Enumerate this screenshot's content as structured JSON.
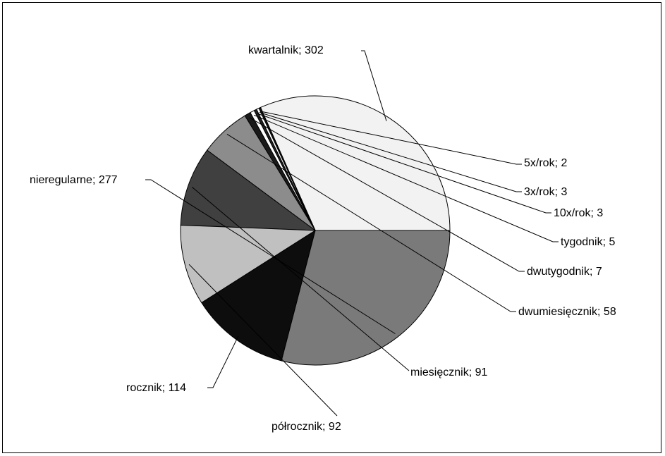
{
  "chart_data": {
    "type": "pie",
    "title": "",
    "legend": "none",
    "slices": [
      {
        "label": "kwartalnik; 302",
        "category": "kwartalnik",
        "value": 302,
        "color": "#f2f2f2"
      },
      {
        "label": "5x/rok; 2",
        "category": "5x/rok",
        "value": 2,
        "color": "#111111"
      },
      {
        "label": "3x/rok; 3",
        "category": "3x/rok",
        "value": 3,
        "color": "#ffffff"
      },
      {
        "label": "10x/rok; 3",
        "category": "10x/rok",
        "value": 3,
        "color": "#222222"
      },
      {
        "label": "tygodnik; 5",
        "category": "tygodnik",
        "value": 5,
        "color": "#ffffff"
      },
      {
        "label": "dwutygodnik; 7",
        "category": "dwutygodnik",
        "value": 7,
        "color": "#1a1a1a"
      },
      {
        "label": "dwumiesięcznik; 58",
        "category": "dwumiesięcznik",
        "value": 58,
        "color": "#8c8c8c"
      },
      {
        "label": "miesięcznik; 91",
        "category": "miesięcznik",
        "value": 91,
        "color": "#404040"
      },
      {
        "label": "półrocznik; 92",
        "category": "półrocznik",
        "value": 92,
        "color": "#c0c0c0"
      },
      {
        "label": "rocznik; 114",
        "category": "rocznik",
        "value": 114,
        "color": "#0d0d0d"
      },
      {
        "label": "nieregularne; 277",
        "category": "nieregularne",
        "value": 277,
        "color": "#7a7a7a"
      }
    ]
  }
}
